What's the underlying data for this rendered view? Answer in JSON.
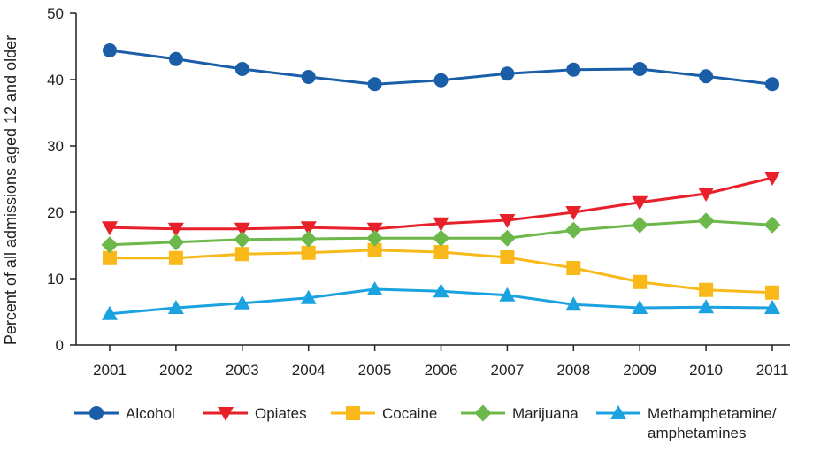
{
  "chart_data": {
    "type": "line",
    "title": "",
    "xlabel": "",
    "ylabel": "Percent of all admissions aged 12 and older",
    "ylim": [
      0,
      50
    ],
    "yticks": [
      "0",
      "10",
      "20",
      "30",
      "40",
      "50"
    ],
    "x": [
      "2001",
      "2002",
      "2003",
      "2004",
      "2005",
      "2006",
      "2007",
      "2008",
      "2009",
      "2010",
      "2011"
    ],
    "grid": false,
    "legend_placement": "bottom",
    "series": [
      {
        "name": "Alcohol",
        "marker": "circle",
        "color": "#1a5ea8",
        "values": [
          44.4,
          43.1,
          41.6,
          40.4,
          39.3,
          39.9,
          40.9,
          41.5,
          41.6,
          40.5,
          39.3
        ]
      },
      {
        "name": "Opiates",
        "marker": "triangle-down",
        "color": "#e8202a",
        "values": [
          17.7,
          17.5,
          17.5,
          17.7,
          17.5,
          18.3,
          18.8,
          20.0,
          21.5,
          22.8,
          25.2
        ]
      },
      {
        "name": "Cocaine",
        "marker": "square",
        "color": "#f9b91a",
        "values": [
          13.1,
          13.1,
          13.7,
          13.9,
          14.3,
          14.0,
          13.2,
          11.6,
          9.5,
          8.3,
          7.9
        ]
      },
      {
        "name": "Marijuana",
        "marker": "diamond",
        "color": "#6cb84a",
        "values": [
          15.1,
          15.5,
          15.9,
          16.0,
          16.1,
          16.1,
          16.1,
          17.3,
          18.1,
          18.7,
          18.1
        ]
      },
      {
        "name": "Methamphetamine/ amphetamines",
        "legend_lines": [
          "Methamphetamine/",
          "amphetamines"
        ],
        "marker": "triangle-up",
        "color": "#1aa3e0",
        "values": [
          4.7,
          5.6,
          6.3,
          7.1,
          8.4,
          8.1,
          7.5,
          6.1,
          5.6,
          5.7,
          5.6
        ]
      }
    ]
  }
}
